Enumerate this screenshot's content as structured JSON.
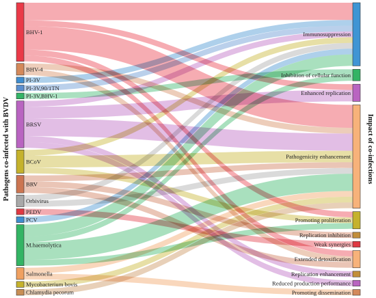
{
  "left_axis_title": "Pathogens co-infected with BVDV",
  "right_axis_title": "Impact of co-infections",
  "chart_data": {
    "type": "sankey",
    "sources": [
      {
        "id": "bhv1",
        "label": "BHV-1",
        "color": "#ea3a48"
      },
      {
        "id": "bhv4",
        "label": "BHV-4",
        "color": "#d4895a"
      },
      {
        "id": "pi3v",
        "label": "PI-3V",
        "color": "#3f8ed0"
      },
      {
        "id": "pi3v90",
        "label": "PI-3V,90/1TN",
        "color": "#5b8fcf"
      },
      {
        "id": "pi3vbhv",
        "label": "PI-3V,BHV-1",
        "color": "#34b568"
      },
      {
        "id": "brsv",
        "label": "BRSV",
        "color": "#b964c1"
      },
      {
        "id": "bcov",
        "label": "BCoV",
        "color": "#c5b22c"
      },
      {
        "id": "brv",
        "label": "BRV",
        "color": "#cc7551"
      },
      {
        "id": "orbi",
        "label": "Orbivirus",
        "color": "#a8a8a8"
      },
      {
        "id": "pedv",
        "label": "PEDV",
        "color": "#e03842"
      },
      {
        "id": "pcv",
        "label": "PCV",
        "color": "#3f8ed0"
      },
      {
        "id": "mhaem",
        "label": "M.haemolytica",
        "color": "#33b464"
      },
      {
        "id": "salm",
        "label": "Salmonella",
        "color": "#f0a060"
      },
      {
        "id": "mycob",
        "label": "Mycobacterium bovis",
        "color": "#c5b22c"
      },
      {
        "id": "chlam",
        "label": "Chlamydia pecorum",
        "color": "#c88f55"
      }
    ],
    "targets": [
      {
        "id": "immuno",
        "label": "Immunosuppression",
        "color": "#3f95d4"
      },
      {
        "id": "inhib",
        "label": "Inhibition of cellular function",
        "color": "#33b464"
      },
      {
        "id": "enhrep",
        "label": "Enhanced replication",
        "color": "#b964c1"
      },
      {
        "id": "patho",
        "label": "Pathogenicity enhancement",
        "color": "#f7b27a"
      },
      {
        "id": "prolif",
        "label": "Promoting proliferation",
        "color": "#c5b22c"
      },
      {
        "id": "repinh",
        "label": "Replication inhibition",
        "color": "#c28e3a"
      },
      {
        "id": "weak",
        "label": "Weak synergies",
        "color": "#e03842"
      },
      {
        "id": "detox",
        "label": "Extended detoxification",
        "color": "#f7b27a"
      },
      {
        "id": "repenh",
        "label": "Replication enhancement",
        "color": "#c28e3a"
      },
      {
        "id": "redprod",
        "label": "Reduced production performance",
        "color": "#b964c1"
      },
      {
        "id": "dissem",
        "label": "Promoting dissemination",
        "color": "#d4895a"
      }
    ],
    "links": [
      {
        "source": "bhv1",
        "target": "immuno",
        "value": 3
      },
      {
        "source": "bhv1",
        "target": "enhrep",
        "value": 1
      },
      {
        "source": "bhv1",
        "target": "patho",
        "value": 4
      },
      {
        "source": "bhv1",
        "target": "prolif",
        "value": 1
      },
      {
        "source": "bhv1",
        "target": "detox",
        "value": 1
      },
      {
        "source": "bhv4",
        "target": "patho",
        "value": 1
      },
      {
        "source": "bhv4",
        "target": "detox",
        "value": 1
      },
      {
        "source": "pi3v",
        "target": "immuno",
        "value": 1
      },
      {
        "source": "pi3v90",
        "target": "immuno",
        "value": 1
      },
      {
        "source": "pi3vbhv",
        "target": "inhib",
        "value": 1
      },
      {
        "source": "brsv",
        "target": "immuno",
        "value": 1
      },
      {
        "source": "brsv",
        "target": "enhrep",
        "value": 2
      },
      {
        "source": "brsv",
        "target": "patho",
        "value": 3
      },
      {
        "source": "brsv",
        "target": "repenh",
        "value": 1
      },
      {
        "source": "brsv",
        "target": "redprod",
        "value": 1
      },
      {
        "source": "bcov",
        "target": "immuno",
        "value": 1
      },
      {
        "source": "bcov",
        "target": "patho",
        "value": 2
      },
      {
        "source": "bcov",
        "target": "prolif",
        "value": 1
      },
      {
        "source": "brv",
        "target": "patho",
        "value": 1
      },
      {
        "source": "brv",
        "target": "repinh",
        "value": 1
      },
      {
        "source": "brv",
        "target": "detox",
        "value": 1
      },
      {
        "source": "orbi",
        "target": "immuno",
        "value": 1
      },
      {
        "source": "orbi",
        "target": "patho",
        "value": 1
      },
      {
        "source": "pedv",
        "target": "weak",
        "value": 1
      },
      {
        "source": "pcv",
        "target": "immuno",
        "value": 1
      },
      {
        "source": "mhaem",
        "target": "immuno",
        "value": 2
      },
      {
        "source": "mhaem",
        "target": "inhib",
        "value": 1
      },
      {
        "source": "mhaem",
        "target": "patho",
        "value": 3
      },
      {
        "source": "mhaem",
        "target": "prolif",
        "value": 1
      },
      {
        "source": "salm",
        "target": "patho",
        "value": 1
      },
      {
        "source": "salm",
        "target": "dissem",
        "value": 1
      },
      {
        "source": "mycob",
        "target": "patho",
        "value": 1
      },
      {
        "source": "chlam",
        "target": "patho",
        "value": 1
      }
    ]
  }
}
